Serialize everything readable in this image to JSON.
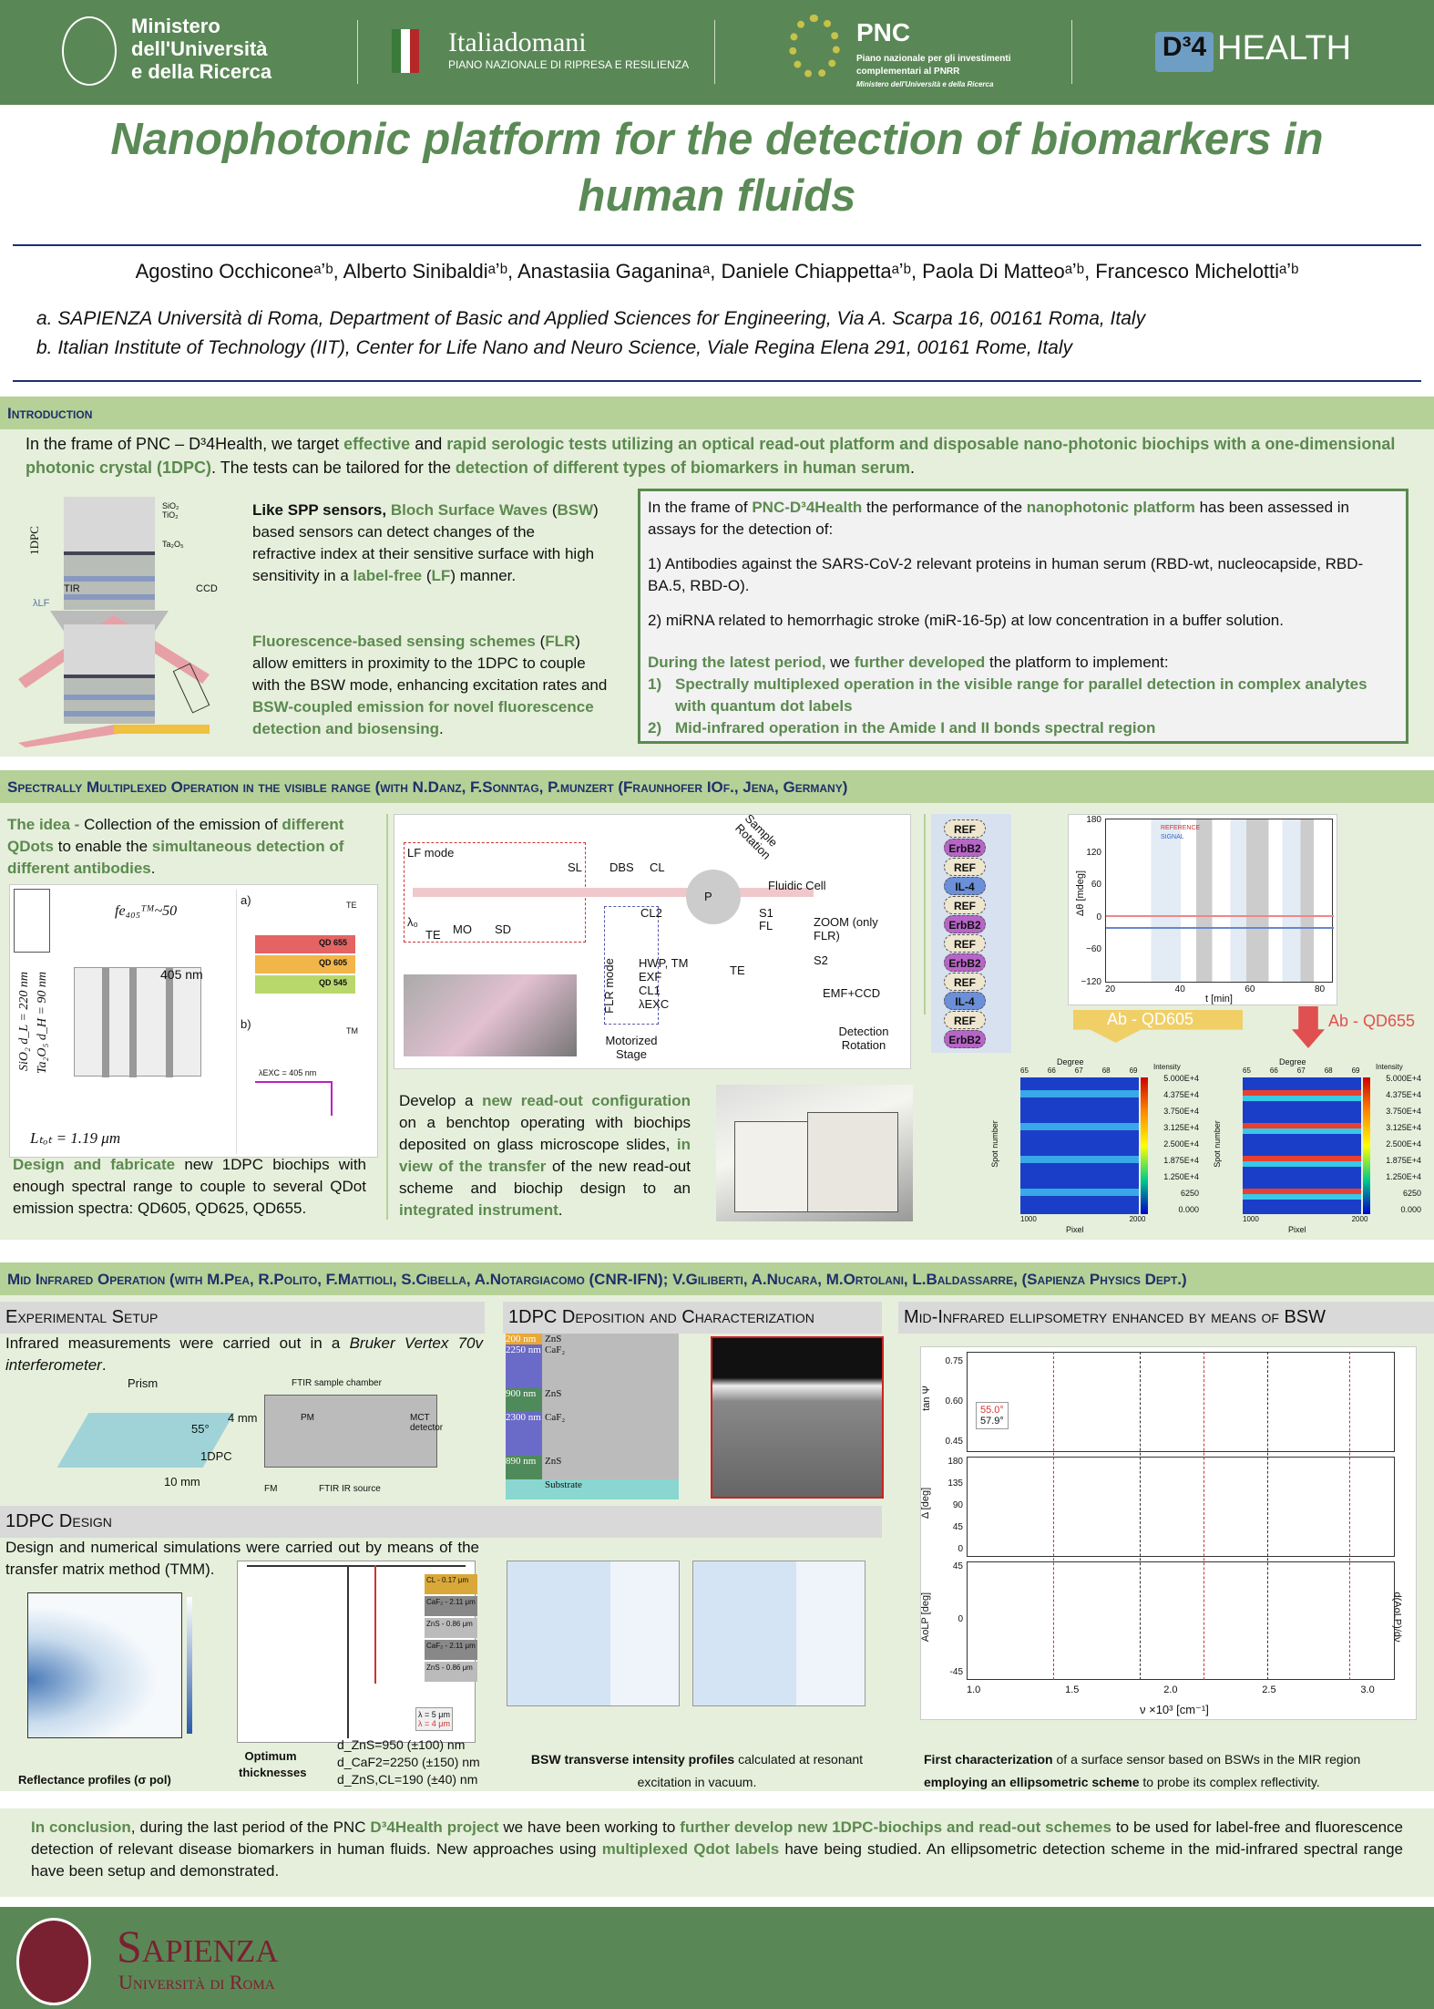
{
  "header": {
    "mur": [
      "Ministero",
      "dell'Università",
      "e della Ricerca"
    ],
    "italiadomani": "Italiadomani",
    "italiadomani_sub": "PIANO NAZIONALE DI RIPRESA E RESILIENZA",
    "pnc": "PNC",
    "pnc_sub": [
      "Piano nazionale per gli investimenti",
      "complementari al PNRR"
    ],
    "pnc_sub2": "Ministero dell'Università e della Ricerca",
    "d4_logo": "D³4",
    "d4_health": "HEALTH"
  },
  "title": "Nanophotonic platform for the detection of biomarkers in human fluids",
  "authors": "Agostino Occhiconeᵃʼᵇ, Alberto Sinibaldiᵃʼᵇ, Anastasiia Gaganinaᵃ, Daniele Chiappettaᵃʼᵇ, Paola Di Matteoᵃʼᵇ, Francesco Michelottiᵃʼᵇ",
  "affiliations": [
    "a.  SAPIENZA Università di Roma, Department of Basic and Applied Sciences for Engineering, Via A. Scarpa 16, 00161 Roma, Italy",
    "b.  Italian Institute of Technology (IIT), Center for Life Nano and Neuro Science, Viale Regina Elena 291, 00161 Rome, Italy"
  ],
  "intro": {
    "heading": "Introduction",
    "lead": [
      {
        "t": "In the frame of PNC – D³4Health, we target "
      },
      {
        "t": "effective",
        "h": 1
      },
      {
        "t": " and "
      },
      {
        "t": "rapid serologic tests utilizing an optical read-out platform and disposable nano-photonic biochips with a one-dimensional photonic crystal (1DPC)",
        "h": 1
      },
      {
        "t": ". The tests can be tailored for the "
      },
      {
        "t": "detection of different types of biomarkers in human serum",
        "h": 1
      },
      {
        "t": "."
      }
    ],
    "bsw": [
      {
        "t": "Like SPP sensors, ",
        "b": 1
      },
      {
        "t": "Bloch Surface Waves",
        "h": 1
      },
      {
        "t": " ("
      },
      {
        "t": "BSW",
        "h": 1
      },
      {
        "t": ") based sensors can detect changes of the refractive index at their sensitive surface with high sensitivity in a "
      },
      {
        "t": "label-free",
        "h": 1
      },
      {
        "t": " ("
      },
      {
        "t": "LF",
        "h": 1
      },
      {
        "t": ") manner."
      }
    ],
    "flr": [
      {
        "t": "Fluorescence-based sensing schemes",
        "h": 1
      },
      {
        "t": " ("
      },
      {
        "t": "FLR",
        "h": 1
      },
      {
        "t": ") allow emitters in proximity to the 1DPC to couple with the BSW mode, enhancing excitation rates and "
      },
      {
        "t": "BSW-coupled emission for novel fluorescence detection and biosensing",
        "h": 1
      },
      {
        "t": "."
      }
    ],
    "fig_labels": {
      "dpc": "1DPC",
      "tir": "TIR",
      "ccd": "CCD",
      "sio2": "SiO₂",
      "tio2": "TiO₂",
      "ta2o5": "Ta₂O₅",
      "llf": "λLF"
    },
    "box_p1": [
      {
        "t": "In the frame of "
      },
      {
        "t": "PNC-D³4Health",
        "h": 1
      },
      {
        "t": " the performance of the "
      },
      {
        "t": "nanophotonic platform",
        "h": 1
      },
      {
        "t": " has been assessed in assays for the detection of:"
      }
    ],
    "box_p2": [
      {
        "t": "1) Antibodies against the SARS-CoV-2 relevant proteins in human serum (RBD-wt, nucleocapside, RBD-BA.5, RBD-O)."
      }
    ],
    "box_p3": [
      {
        "t": "2) miRNA related to hemorrhagic stroke (miR-16-5p) at low concentration in a buffer solution."
      }
    ],
    "box_p4": [
      {
        "t": "During the latest period,",
        "h": 1
      },
      {
        "t": " we "
      },
      {
        "t": "further developed",
        "h": 1
      },
      {
        "t": " the platform to implement:"
      }
    ],
    "box_list": [
      "Spectrally multiplexed operation in the visible range for parallel detection in complex analytes with quantum dot labels",
      "Mid-infrared operation in the Amide I and II bonds spectral region"
    ],
    "box_list_nums": [
      "1)",
      "2)"
    ]
  },
  "spectral": {
    "heading": "Spectrally Multiplexed Operation in the visible range (with N.Danz, F.Sonntag, P.munzert (Fraunhofer IOf., Jena, Germany)",
    "idea": [
      {
        "t": "The idea - ",
        "h": 1
      },
      {
        "t": "Collection of the emission of "
      },
      {
        "t": "different QDots",
        "h": 1
      },
      {
        "t": " to enable the "
      },
      {
        "t": "simultaneous detection of different antibodies",
        "h": 1
      },
      {
        "t": "."
      }
    ],
    "design": [
      {
        "t": "Design and fabricate",
        "h": 1
      },
      {
        "t": " new 1DPC biochips with enough spectral range to couple to several QDot emission spectra: QD605, QD625, QD655."
      }
    ],
    "develop": [
      {
        "t": "Develop a "
      },
      {
        "t": "new read-out configuration",
        "h": 1
      },
      {
        "t": " on a benchtop operating with biochips deposited on glass microscope slides, "
      },
      {
        "t": "in view of the transfer",
        "h": 1
      },
      {
        "t": " of the new read-out scheme and biochip design to an "
      },
      {
        "t": "integrated instrument",
        "h": 1
      },
      {
        "t": "."
      }
    ],
    "fig1": {
      "fe": "fe₄₀₅ᵀᴹ~50",
      "nm": "405 nm",
      "ltot": "Lₜₒₜ = 1.19 μm",
      "d1": "SiO₂ d_L = 220 nm",
      "d2": "Ta₂O₅ d_H = 90 nm",
      "a": "a)",
      "b": "b)",
      "te": "TE",
      "tm": "TM",
      "qd": [
        "QD 655",
        "QD 605",
        "QD 545"
      ],
      "lexc": "λEXC = 405 nm"
    },
    "setup": {
      "lf": "LF mode",
      "sl": "SL",
      "dbs": "DBS",
      "cl": "CL",
      "mo": "MO",
      "sd": "SD",
      "te": "TE",
      "l0": "λ₀",
      "cl2": "CL2",
      "hwp": "HWP, TM",
      "exf": "EXF",
      "cl1": "CL1",
      "lexc": "λEXC",
      "flr": "FLR mode",
      "stage": "Motorized Stage",
      "p": "P",
      "rot": "Sample Rotation",
      "cell": "Fluidic Cell",
      "s1": "S1",
      "fl": "FL",
      "zoom": "ZOOM (only FLR)",
      "s2": "S2",
      "emf": "EMF+CCD",
      "det": "Detection Rotation"
    },
    "spots": [
      "REF",
      "ErbB2",
      "REF",
      "IL-4",
      "REF",
      "ErbB2",
      "REF",
      "ErbB2",
      "REF",
      "IL-4",
      "REF",
      "ErbB2"
    ],
    "plot": {
      "ylabel": "Δθ [mdeg]",
      "xlabel": "t [min]",
      "yticks": [
        "180",
        "120",
        "60",
        "0",
        "−60",
        "−120"
      ],
      "xticks": [
        "20",
        "40",
        "60",
        "80"
      ],
      "legend": [
        "REFERENCE",
        "SIGNAL"
      ]
    },
    "ab1": "Ab - QD605",
    "ab2": "Ab - QD655",
    "heat": {
      "degree": "Degree",
      "pixel": "Pixel",
      "spot": "Spot number",
      "intensity": "Intensity",
      "top": [
        "65",
        "66",
        "67",
        "68",
        "69"
      ],
      "bottom": [
        "1000",
        "2000"
      ],
      "scale": [
        "5.000E+4",
        "4.375E+4",
        "3.750E+4",
        "3.125E+4",
        "2.500E+4",
        "1.875E+4",
        "1.250E+4",
        "6250",
        "0.000"
      ]
    }
  },
  "mir": {
    "heading": "Mid Infrared Operation (with M.Pea, R.Polito, F.Mattioli, S.Cibella, A.Notargiacomo (CNR-IFN); V.Giliberti, A.Nucara, M.Ortolani, L.Baldassarre, (Sapienza Physics Dept.)",
    "exp_title": "Experimental Setup",
    "exp_text": [
      {
        "t": "Infrared measurements were carried out in a "
      },
      {
        "t": "Bruker Vertex 70v",
        "i": 1
      },
      {
        "t": " "
      },
      {
        "t": "interferometer",
        "i": 1
      },
      {
        "t": "."
      }
    ],
    "exp_labels": {
      "prism": "Prism",
      "angle": "55°",
      "dim1": "4 mm",
      "dim2": "10 mm",
      "dpc": "1DPC",
      "chamber": "FTIR sample chamber",
      "mct": "MCT detector",
      "src": "FTIR IR source",
      "fm": "FM",
      "pm": "PM"
    },
    "dep_title": "1DPC Deposition and Characterization",
    "layers": [
      {
        "nm": "200 nm",
        "m": "ZnS"
      },
      {
        "nm": "2250 nm",
        "m": "CaF₂"
      },
      {
        "nm": "900 nm",
        "m": "ZnS"
      },
      {
        "nm": "2300 nm",
        "m": "CaF₂"
      },
      {
        "nm": "890 nm",
        "m": "ZnS"
      },
      {
        "nm": "",
        "m": "Substrate"
      }
    ],
    "ell_title": "Mid-Infrared ellipsometry enhanced by means of BSW",
    "ell": {
      "y1": "tan Ψ",
      "y2": "Δ [deg]",
      "y3": "AoLP [deg]",
      "y3r": "d(AoLP)/dν",
      "x": "ν ×10³ [cm⁻¹]",
      "xticks": [
        "1.0",
        "1.5",
        "2.0",
        "2.5",
        "3.0"
      ],
      "legend": [
        "55.0°",
        "57.9°"
      ],
      "t1": [
        "0.75",
        "0.60",
        "0.45"
      ],
      "t2": [
        "180",
        "135",
        "90",
        "45",
        "0"
      ],
      "t3": [
        "45",
        "0",
        "-45"
      ]
    },
    "ell_caption": [
      {
        "t": "First characterization",
        "b": 1
      },
      {
        "t": " of a surface sensor based on BSWs in the MIR region "
      },
      {
        "t": "employing an ellipsometric scheme",
        "b": 1
      },
      {
        "t": " to probe its complex reflectivity."
      }
    ],
    "des_title": "1DPC Design",
    "des_text": "Design and numerical simulations were carried out by means of the transfer matrix method (TMM).",
    "refl_caption": "Reflectance profiles (σ pol)",
    "opt_label": "Optimum thicknesses",
    "thick": [
      "d_ZnS=950 (±100) nm",
      "d_CaF2=2250 (±150) nm",
      "d_ZnS,CL=190 (±40) nm"
    ],
    "rte_legend": [
      "λ = 5 μm",
      "λ = 4 μm"
    ],
    "stack": [
      "CL - 0.17 μm",
      "CaF₂ - 2.11 μm",
      "ZnS - 0.86 μm",
      "CaF₂ - 2.11 μm",
      "ZnS - 0.86 μm"
    ],
    "bsw_caption": [
      {
        "t": "BSW transverse intensity profiles",
        "b": 1
      },
      {
        "t": " calculated at resonant excitation in vacuum."
      }
    ]
  },
  "conclusion": [
    {
      "t": "In conclusion",
      "h": 1
    },
    {
      "t": ", during the last period of the PNC "
    },
    {
      "t": "D³4Health project",
      "h": 1
    },
    {
      "t": " we have been working to "
    },
    {
      "t": "further develop new 1DPC-biochips and read-out schemes",
      "h": 1
    },
    {
      "t": " to be used for label-free and fluorescence detection of relevant disease biomarkers in human fluids. New approaches using "
    },
    {
      "t": "multiplexed Qdot  labels",
      "h": 1
    },
    {
      "t": " have being studied. An ellipsometric detection scheme in the mid-infrared spectral range have been setup and demonstrated."
    }
  ],
  "footer": {
    "sapienza": "Sapienza",
    "univ": "Università di Roma"
  },
  "colors": {
    "header_green": "#5a8756",
    "accent": "#5b8a4f",
    "section": "#b5d198",
    "panel": "#e6efdb",
    "navy": "#1f2f6b",
    "sapienza": "#7a2131"
  }
}
